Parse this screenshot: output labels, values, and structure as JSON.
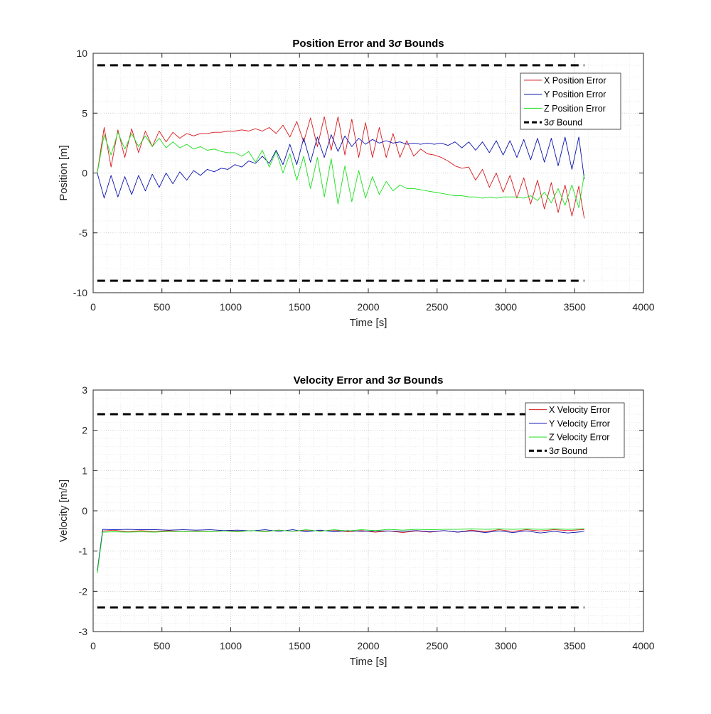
{
  "chart_data": [
    {
      "type": "line",
      "title": "Position Error and 3σ Bounds",
      "title_parts": [
        "Position Error and 3",
        "σ",
        " Bounds"
      ],
      "xlabel": "Time [s]",
      "ylabel": "Position [m]",
      "xlim": [
        0,
        4000
      ],
      "ylim": [
        -10,
        10
      ],
      "xticks": [
        "0",
        "500",
        "1000",
        "1500",
        "2000",
        "2500",
        "3000",
        "3500",
        "4000"
      ],
      "yticks": [
        "-10",
        "-5",
        "0",
        "5",
        "10"
      ],
      "grid": "on (dotted, with minor grid)",
      "legend_position": "top-right",
      "legend_labels": [
        "X Position Error",
        "Y Position Error",
        "Z Position Error",
        "3σ Bound"
      ],
      "bound_label_parts": [
        "3",
        "σ",
        " Bound"
      ],
      "colors": {
        "x": "#d7191c",
        "y": "#0a12b0",
        "z": "#1ae01a",
        "bound": "#000000"
      },
      "bound": 9,
      "series": [
        {
          "name": "X Position Error",
          "color": "#d7191c",
          "x": [
            30,
            80,
            130,
            180,
            230,
            280,
            330,
            380,
            430,
            480,
            530,
            580,
            630,
            680,
            730,
            780,
            830,
            880,
            930,
            980,
            1030,
            1080,
            1130,
            1180,
            1230,
            1280,
            1330,
            1380,
            1430,
            1480,
            1530,
            1580,
            1630,
            1680,
            1730,
            1780,
            1830,
            1880,
            1930,
            1980,
            2030,
            2080,
            2130,
            2180,
            2230,
            2280,
            2330,
            2380,
            2430,
            2480,
            2530,
            2580,
            2630,
            2680,
            2730,
            2780,
            2830,
            2880,
            2930,
            2980,
            3030,
            3080,
            3130,
            3180,
            3230,
            3280,
            3330,
            3380,
            3430,
            3480,
            3530,
            3570
          ],
          "values": [
            0.0,
            3.8,
            0.5,
            3.6,
            1.3,
            3.7,
            1.7,
            3.5,
            2.2,
            3.5,
            2.6,
            3.4,
            2.9,
            3.3,
            3.1,
            3.3,
            3.3,
            3.4,
            3.4,
            3.5,
            3.5,
            3.6,
            3.5,
            3.7,
            3.5,
            3.8,
            3.3,
            4.0,
            3.0,
            4.3,
            2.6,
            4.6,
            2.2,
            4.7,
            1.9,
            4.7,
            1.5,
            4.5,
            1.3,
            4.2,
            1.3,
            3.8,
            1.3,
            3.3,
            1.3,
            2.7,
            1.4,
            2.0,
            1.6,
            1.5,
            1.3,
            1.0,
            0.6,
            0.4,
            0.5,
            -0.6,
            0.3,
            -1.2,
            0.0,
            -1.6,
            -0.2,
            -2.1,
            -0.4,
            -2.6,
            -0.6,
            -3.0,
            -0.8,
            -3.3,
            -1.0,
            -3.6,
            -1.1,
            -3.8
          ]
        },
        {
          "name": "Y Position Error",
          "color": "#0a12b0",
          "x": [
            30,
            80,
            130,
            180,
            230,
            280,
            330,
            380,
            430,
            480,
            530,
            580,
            630,
            680,
            730,
            780,
            830,
            880,
            930,
            980,
            1030,
            1080,
            1130,
            1180,
            1230,
            1280,
            1330,
            1380,
            1430,
            1480,
            1530,
            1580,
            1630,
            1680,
            1730,
            1780,
            1830,
            1880,
            1930,
            1980,
            2030,
            2080,
            2130,
            2180,
            2230,
            2280,
            2330,
            2380,
            2430,
            2480,
            2530,
            2580,
            2630,
            2680,
            2730,
            2780,
            2830,
            2880,
            2930,
            2980,
            3030,
            3080,
            3130,
            3180,
            3230,
            3280,
            3330,
            3380,
            3430,
            3480,
            3530,
            3570
          ],
          "values": [
            0.0,
            -2.1,
            -0.2,
            -2.0,
            -0.3,
            -1.8,
            -0.2,
            -1.5,
            -0.1,
            -1.2,
            0.0,
            -0.9,
            0.1,
            -0.6,
            0.2,
            -0.2,
            0.3,
            0.1,
            0.4,
            0.3,
            0.7,
            0.5,
            1.0,
            0.8,
            1.4,
            0.8,
            1.9,
            0.7,
            2.4,
            0.7,
            2.9,
            0.9,
            3.0,
            1.3,
            3.2,
            1.8,
            3.1,
            2.2,
            2.9,
            2.4,
            2.8,
            2.5,
            2.7,
            2.5,
            2.6,
            2.4,
            2.5,
            2.4,
            2.5,
            2.4,
            2.5,
            2.3,
            2.6,
            2.1,
            2.6,
            1.9,
            2.6,
            1.7,
            2.7,
            1.5,
            2.7,
            1.3,
            2.8,
            1.1,
            2.9,
            0.9,
            2.9,
            0.6,
            3.0,
            0.3,
            3.0,
            -0.5
          ]
        },
        {
          "name": "Z Position Error",
          "color": "#1ae01a",
          "x": [
            30,
            80,
            130,
            180,
            230,
            280,
            330,
            380,
            430,
            480,
            530,
            580,
            630,
            680,
            730,
            780,
            830,
            880,
            930,
            980,
            1030,
            1080,
            1130,
            1180,
            1230,
            1280,
            1330,
            1380,
            1430,
            1480,
            1530,
            1580,
            1630,
            1680,
            1730,
            1780,
            1830,
            1880,
            1930,
            1980,
            2030,
            2080,
            2130,
            2180,
            2230,
            2280,
            2330,
            2380,
            2430,
            2480,
            2530,
            2580,
            2630,
            2680,
            2730,
            2780,
            2830,
            2880,
            2930,
            2980,
            3030,
            3080,
            3130,
            3180,
            3230,
            3280,
            3330,
            3380,
            3430,
            3480,
            3530,
            3570
          ],
          "values": [
            0.0,
            3.2,
            1.5,
            3.4,
            2.0,
            3.3,
            2.2,
            3.1,
            2.2,
            2.9,
            2.1,
            2.6,
            2.1,
            2.4,
            2.0,
            2.2,
            1.9,
            2.0,
            1.8,
            1.7,
            1.7,
            1.4,
            1.8,
            0.9,
            1.9,
            0.5,
            1.8,
            0.0,
            1.6,
            -0.6,
            1.4,
            -1.3,
            1.3,
            -2.0,
            1.2,
            -2.6,
            0.6,
            -2.4,
            0.2,
            -2.1,
            -0.3,
            -1.8,
            -0.7,
            -1.5,
            -1.0,
            -1.3,
            -1.3,
            -1.4,
            -1.5,
            -1.6,
            -1.7,
            -1.8,
            -1.9,
            -1.9,
            -2.0,
            -2.0,
            -2.1,
            -2.0,
            -2.1,
            -2.0,
            -2.0,
            -2.0,
            -2.1,
            -1.9,
            -2.3,
            -1.6,
            -2.5,
            -1.3,
            -2.7,
            -1.0,
            -2.9,
            -0.1
          ]
        },
        {
          "name": "3σ Bound",
          "color": "#000000",
          "dashed": true,
          "x": [
            30,
            3570
          ],
          "values": [
            9,
            9
          ]
        },
        {
          "name": "3σ Bound",
          "color": "#000000",
          "dashed": true,
          "x": [
            30,
            3570
          ],
          "values": [
            -9,
            -9
          ]
        }
      ]
    },
    {
      "type": "line",
      "title": "Velocity Error and 3σ Bounds",
      "title_parts": [
        "Velocity Error and 3",
        "σ",
        " Bounds"
      ],
      "xlabel": "Time [s]",
      "ylabel": "Velocity [m/s]",
      "xlim": [
        0,
        4000
      ],
      "ylim": [
        -3,
        3
      ],
      "xticks": [
        "0",
        "500",
        "1000",
        "1500",
        "2000",
        "2500",
        "3000",
        "3500",
        "4000"
      ],
      "yticks": [
        "-3",
        "-2",
        "-1",
        "0",
        "1",
        "2",
        "3"
      ],
      "grid": "on (dotted, with minor grid)",
      "legend_position": "top-right",
      "legend_labels": [
        "X Velocity Error",
        "Y Velocity Error",
        "Z Velocity Error",
        "3σ Bound"
      ],
      "bound_label_parts": [
        "3",
        "σ",
        " Bound"
      ],
      "colors": {
        "x": "#d7191c",
        "y": "#0a12b0",
        "z": "#1ae01a",
        "bound": "#000000"
      },
      "bound": 2.4,
      "series": [
        {
          "name": "X Velocity Error",
          "color": "#d7191c",
          "x": [
            30,
            70,
            150,
            250,
            350,
            450,
            550,
            650,
            750,
            850,
            950,
            1050,
            1150,
            1250,
            1350,
            1450,
            1550,
            1650,
            1750,
            1850,
            1950,
            2050,
            2150,
            2250,
            2350,
            2450,
            2550,
            2650,
            2750,
            2850,
            2950,
            3050,
            3150,
            3250,
            3350,
            3450,
            3550,
            3570
          ],
          "values": [
            -1.5,
            -0.5,
            -0.48,
            -0.52,
            -0.49,
            -0.52,
            -0.49,
            -0.52,
            -0.5,
            -0.52,
            -0.49,
            -0.51,
            -0.49,
            -0.51,
            -0.48,
            -0.51,
            -0.48,
            -0.5,
            -0.48,
            -0.52,
            -0.49,
            -0.53,
            -0.5,
            -0.54,
            -0.5,
            -0.53,
            -0.49,
            -0.53,
            -0.48,
            -0.52,
            -0.47,
            -0.51,
            -0.47,
            -0.5,
            -0.47,
            -0.49,
            -0.47,
            -0.47
          ]
        },
        {
          "name": "Y Velocity Error",
          "color": "#0a12b0",
          "x": [
            30,
            70,
            150,
            250,
            350,
            450,
            550,
            650,
            750,
            850,
            950,
            1050,
            1150,
            1250,
            1350,
            1450,
            1550,
            1650,
            1750,
            1850,
            1950,
            2050,
            2150,
            2250,
            2350,
            2450,
            2550,
            2650,
            2750,
            2850,
            2950,
            3050,
            3150,
            3250,
            3350,
            3450,
            3550,
            3570
          ],
          "values": [
            -1.5,
            -0.46,
            -0.47,
            -0.46,
            -0.47,
            -0.47,
            -0.48,
            -0.47,
            -0.48,
            -0.47,
            -0.49,
            -0.48,
            -0.5,
            -0.47,
            -0.51,
            -0.47,
            -0.52,
            -0.48,
            -0.52,
            -0.49,
            -0.51,
            -0.5,
            -0.5,
            -0.51,
            -0.49,
            -0.52,
            -0.49,
            -0.53,
            -0.5,
            -0.54,
            -0.5,
            -0.54,
            -0.5,
            -0.55,
            -0.51,
            -0.55,
            -0.52,
            -0.5
          ]
        },
        {
          "name": "Z Velocity Error",
          "color": "#1ae01a",
          "x": [
            30,
            70,
            150,
            250,
            350,
            450,
            550,
            650,
            750,
            850,
            950,
            1050,
            1150,
            1250,
            1350,
            1450,
            1550,
            1650,
            1750,
            1850,
            1950,
            2050,
            2150,
            2250,
            2350,
            2450,
            2550,
            2650,
            2750,
            2850,
            2950,
            3050,
            3150,
            3250,
            3350,
            3450,
            3550,
            3570
          ],
          "values": [
            -1.55,
            -0.53,
            -0.52,
            -0.53,
            -0.52,
            -0.53,
            -0.51,
            -0.52,
            -0.51,
            -0.52,
            -0.5,
            -0.52,
            -0.49,
            -0.52,
            -0.48,
            -0.51,
            -0.47,
            -0.51,
            -0.47,
            -0.5,
            -0.47,
            -0.49,
            -0.46,
            -0.48,
            -0.46,
            -0.47,
            -0.46,
            -0.46,
            -0.45,
            -0.46,
            -0.45,
            -0.46,
            -0.45,
            -0.46,
            -0.45,
            -0.46,
            -0.45,
            -0.44
          ]
        },
        {
          "name": "3σ Bound",
          "color": "#000000",
          "dashed": true,
          "x": [
            30,
            3570
          ],
          "values": [
            2.4,
            2.4
          ]
        },
        {
          "name": "3σ Bound",
          "color": "#000000",
          "dashed": true,
          "x": [
            30,
            3570
          ],
          "values": [
            -2.4,
            -2.4
          ]
        }
      ]
    }
  ]
}
